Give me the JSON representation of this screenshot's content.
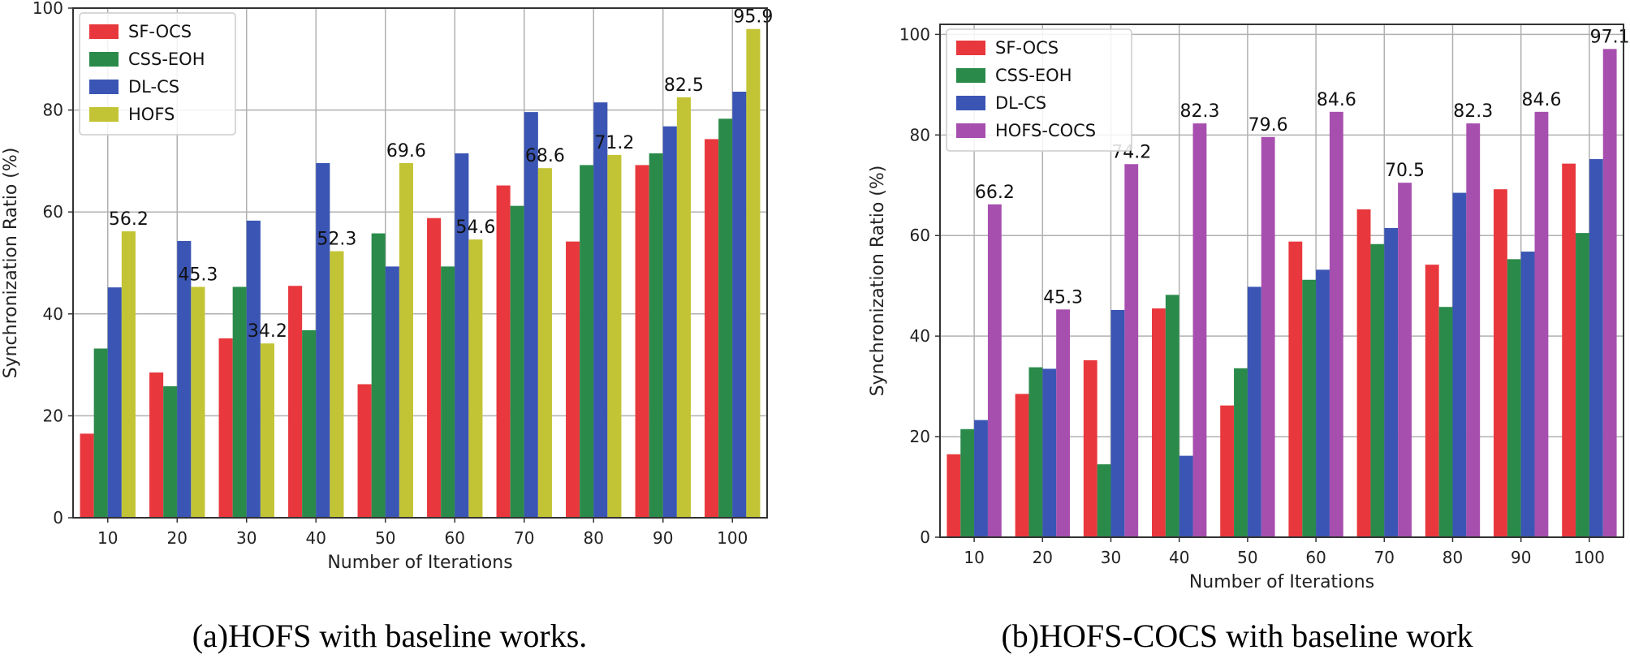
{
  "chart_data": [
    {
      "type": "bar",
      "ylabel": "Synchronization Ratio (%)",
      "xlabel": "Number of Iterations",
      "caption": "(a)HOFS with baseline works.",
      "categories": [
        "10",
        "20",
        "30",
        "40",
        "50",
        "60",
        "70",
        "80",
        "90",
        "100"
      ],
      "ylim": [
        0,
        100
      ],
      "yticks": [
        0,
        20,
        40,
        60,
        80,
        100
      ],
      "grid": true,
      "legend_position": "top-left",
      "series": [
        {
          "name": "SF-OCS",
          "color": "#e8383d",
          "values": [
            16.5,
            28.5,
            35.2,
            45.5,
            26.2,
            58.8,
            65.2,
            54.2,
            69.2,
            74.3
          ]
        },
        {
          "name": "CSS-EOH",
          "color": "#2a8a4a",
          "values": [
            33.2,
            25.8,
            45.3,
            36.8,
            55.8,
            49.3,
            61.2,
            69.2,
            71.5,
            78.3
          ]
        },
        {
          "name": "DL-CS",
          "color": "#3a55b4",
          "values": [
            45.2,
            54.3,
            58.3,
            69.6,
            49.3,
            71.5,
            79.6,
            81.5,
            76.8,
            83.6
          ]
        },
        {
          "name": "HOFS",
          "color": "#c3c435",
          "values": [
            56.2,
            45.3,
            34.2,
            52.3,
            69.6,
            54.6,
            68.6,
            71.2,
            82.5,
            95.9
          ]
        }
      ],
      "data_labels": {
        "series": "HOFS",
        "text": [
          "56.2",
          "45.3",
          "34.2",
          "52.3",
          "69.6",
          "54.6",
          "68.6",
          "71.2",
          "82.5",
          "95.9"
        ]
      }
    },
    {
      "type": "bar",
      "ylabel": "Synchronization Ratio (%)",
      "xlabel": "Number of Iterations",
      "caption": "(b)HOFS-COCS with baseline work",
      "categories": [
        "10",
        "20",
        "30",
        "40",
        "50",
        "60",
        "70",
        "80",
        "90",
        "100"
      ],
      "ylim": [
        0,
        102
      ],
      "yticks": [
        0,
        20,
        40,
        60,
        80,
        100
      ],
      "grid": true,
      "legend_position": "top-left",
      "series": [
        {
          "name": "SF-OCS",
          "color": "#e8383d",
          "values": [
            16.5,
            28.5,
            35.2,
            45.5,
            26.2,
            58.8,
            65.2,
            54.2,
            69.2,
            74.3
          ]
        },
        {
          "name": "CSS-EOH",
          "color": "#2a8a4a",
          "values": [
            21.5,
            33.8,
            14.5,
            48.2,
            33.6,
            51.2,
            58.3,
            45.8,
            55.3,
            60.5
          ]
        },
        {
          "name": "DL-CS",
          "color": "#3a55b4",
          "values": [
            23.3,
            33.5,
            45.2,
            16.2,
            49.8,
            53.2,
            61.5,
            68.5,
            56.8,
            75.2
          ]
        },
        {
          "name": "HOFS-COCS",
          "color": "#a64fae",
          "values": [
            66.2,
            45.3,
            74.2,
            82.3,
            79.6,
            84.6,
            70.5,
            82.3,
            84.6,
            97.1
          ]
        }
      ],
      "data_labels": {
        "series": "HOFS-COCS",
        "text": [
          "66.2",
          "45.3",
          "74.2",
          "82.3",
          "79.6",
          "84.6",
          "70.5",
          "82.3",
          "84.6",
          "97.1"
        ]
      }
    }
  ]
}
